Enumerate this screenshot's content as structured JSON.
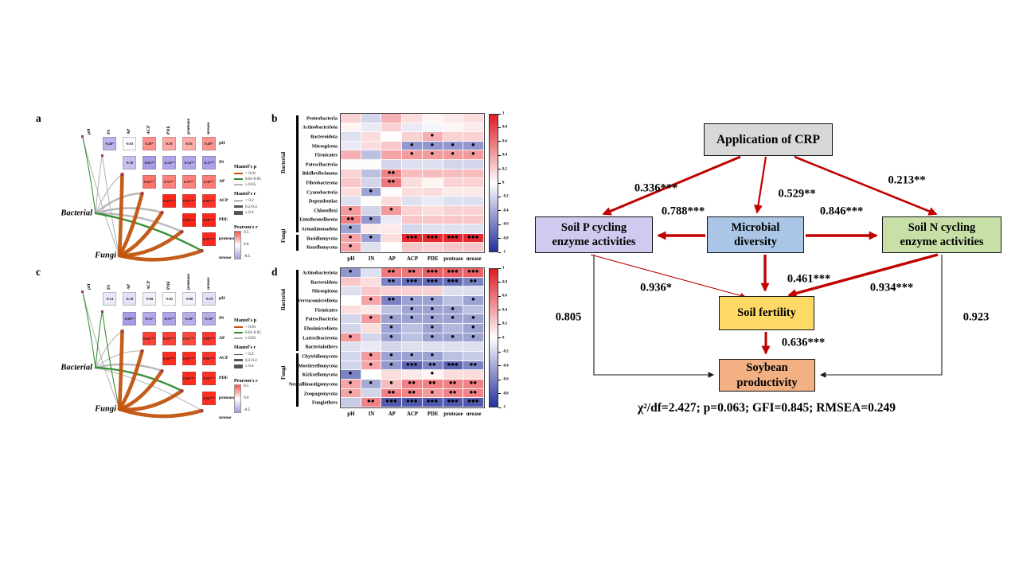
{
  "figure": {
    "background": "#ffffff",
    "accent_red": "#C00000"
  },
  "chart_data": [
    {
      "id": "a",
      "type": "heatmap",
      "subtype": "mantel-test-correlation",
      "panel_label": "a",
      "variables": [
        "pH",
        "IN",
        "AP",
        "ACP",
        "PDE",
        "protease",
        "urease"
      ],
      "nodes": [
        "Bacterial",
        "Fungi"
      ],
      "cells": [
        [
          "-0.46*",
          "-0.03",
          "0.49*",
          "0.39",
          "0.36",
          "0.48*"
        ],
        [
          "-0.38",
          "-0.61**",
          "-0.54**",
          "-0.54**",
          "-0.57**"
        ],
        [
          "0.62**",
          "0.55**",
          "0.55**",
          "0.58**"
        ],
        [
          "0.97***",
          "0.93***",
          "0.90***"
        ],
        [
          "0.98***",
          "0.96***"
        ],
        [
          "0.95***"
        ]
      ],
      "edges": [
        {
          "from": "Bacterial",
          "to": "pH",
          "p": "0.01-0.05",
          "r": "< 0.2"
        },
        {
          "from": "Bacterial",
          "to": "IN",
          "p": "≥ 0.05",
          "r": "< 0.2"
        },
        {
          "from": "Bacterial",
          "to": "AP",
          "p": "≥ 0.05",
          "r": "< 0.2"
        },
        {
          "from": "Bacterial",
          "to": "ACP",
          "p": "≥ 0.05",
          "r": "0.2-0.4"
        },
        {
          "from": "Bacterial",
          "to": "PDE",
          "p": "≥ 0.05",
          "r": "0.2-0.4"
        },
        {
          "from": "Bacterial",
          "to": "protease",
          "p": "≥ 0.05",
          "r": "0.2-0.4"
        },
        {
          "from": "Bacterial",
          "to": "urease",
          "p": "0.01-0.05",
          "r": "0.2-0.4"
        },
        {
          "from": "Fungi",
          "to": "pH",
          "p": "≥ 0.05",
          "r": "< 0.2"
        },
        {
          "from": "Fungi",
          "to": "IN",
          "p": "≥ 0.05",
          "r": "< 0.2"
        },
        {
          "from": "Fungi",
          "to": "AP",
          "p": "< 0.01",
          "r": "≥ 0.4"
        },
        {
          "from": "Fungi",
          "to": "ACP",
          "p": "< 0.01",
          "r": "≥ 0.4"
        },
        {
          "from": "Fungi",
          "to": "PDE",
          "p": "< 0.01",
          "r": "≥ 0.4"
        },
        {
          "from": "Fungi",
          "to": "protease",
          "p": "< 0.01",
          "r": "≥ 0.4"
        },
        {
          "from": "Fungi",
          "to": "urease",
          "p": "< 0.01",
          "r": "≥ 0.4"
        }
      ],
      "legend": {
        "mantel_p": {
          "title": "Mantel's p",
          "items": [
            {
              "label": "< 0.01",
              "color": "#C1530E"
            },
            {
              "label": "0.01-0.05",
              "color": "#2F8B2F"
            },
            {
              "label": "≥ 0.05",
              "color": "#B3B3B3"
            }
          ]
        },
        "mantel_r": {
          "title": "Mantel's r",
          "items": [
            {
              "label": "< 0.2",
              "width": 1
            },
            {
              "label": "0.2-0.4",
              "width": 2.5
            },
            {
              "label": "≥ 0.4",
              "width": 5
            }
          ]
        },
        "pearson": {
          "title": "Pearson's r",
          "ticks": [
            "0.5",
            "0.0",
            "-0.5"
          ]
        }
      }
    },
    {
      "id": "b",
      "type": "heatmap",
      "panel_label": "b",
      "columns": [
        "pH",
        "IN",
        "AP",
        "ACP",
        "PDE",
        "protease",
        "urease"
      ],
      "groups": [
        {
          "label": "Bacterial",
          "span": 13
        },
        {
          "label": "Fungi",
          "span": 2
        }
      ],
      "rows": [
        "Proteobacteria",
        "Actinobacteriota",
        "Bacteroidota",
        "Nitrospirota",
        "Firmicutes",
        "Patescibacteria",
        "Bdellovibrionota",
        "Fibrobacterota",
        "Cyanobacteria",
        "Dependentiae",
        "Chloroflexi",
        "Entotheonellaeota",
        "Armatimonadota",
        "Basidiomycota",
        "Rozellomycota"
      ],
      "values": [
        [
          0.2,
          -0.2,
          0.35,
          0.15,
          0.05,
          0.1,
          0.15
        ],
        [
          0.05,
          -0.1,
          0.2,
          -0.1,
          -0.05,
          0.05,
          0.1
        ],
        [
          -0.15,
          0.15,
          0.0,
          0.2,
          0.35,
          0.2,
          0.2
        ],
        [
          -0.1,
          0.15,
          0.25,
          -0.5,
          -0.5,
          -0.5,
          -0.5
        ],
        [
          0.35,
          -0.3,
          0.4,
          0.45,
          0.45,
          0.45,
          0.45
        ],
        [
          0.02,
          0.02,
          -0.2,
          -0.15,
          -0.15,
          -0.2,
          -0.2
        ],
        [
          0.2,
          -0.3,
          0.55,
          0.3,
          0.3,
          0.3,
          0.3
        ],
        [
          0.25,
          -0.2,
          0.6,
          0.15,
          0.05,
          0.2,
          0.2
        ],
        [
          0.15,
          -0.45,
          0.02,
          0.15,
          0.15,
          0.1,
          0.1
        ],
        [
          -0.15,
          0.02,
          0.15,
          -0.15,
          -0.1,
          -0.15,
          -0.15
        ],
        [
          0.45,
          -0.2,
          0.45,
          0.2,
          0.15,
          0.2,
          0.2
        ],
        [
          0.55,
          -0.5,
          -0.1,
          0.25,
          0.25,
          0.25,
          0.25
        ],
        [
          -0.45,
          0.1,
          0.1,
          -0.2,
          -0.15,
          -0.15,
          -0.15
        ],
        [
          0.4,
          -0.45,
          0.15,
          0.95,
          0.95,
          0.95,
          0.95
        ],
        [
          0.4,
          -0.15,
          0.0,
          0.25,
          0.2,
          0.25,
          0.25
        ]
      ],
      "sig": [
        [
          "",
          "",
          "",
          "",
          "",
          "",
          ""
        ],
        [
          "",
          "",
          "",
          "",
          "",
          "",
          ""
        ],
        [
          "",
          "",
          "",
          "",
          "*",
          "",
          ""
        ],
        [
          "",
          "",
          "",
          "*",
          "*",
          "*",
          "*"
        ],
        [
          "",
          "",
          "",
          "*",
          "*",
          "*",
          "*"
        ],
        [
          "",
          "",
          "",
          "",
          "",
          "",
          ""
        ],
        [
          "",
          "",
          "**",
          "",
          "",
          "",
          ""
        ],
        [
          "",
          "",
          "**",
          "",
          "",
          "",
          ""
        ],
        [
          "",
          "*",
          "",
          "",
          "",
          "",
          ""
        ],
        [
          "",
          "",
          "",
          "",
          "",
          "",
          ""
        ],
        [
          "*",
          "",
          "*",
          "",
          "",
          "",
          ""
        ],
        [
          "**",
          "*",
          "",
          "",
          "",
          "",
          ""
        ],
        [
          "*",
          "",
          "",
          "",
          "",
          "",
          ""
        ],
        [
          "*",
          "*",
          "",
          "***",
          "***",
          "***",
          "***"
        ],
        [
          "*",
          "",
          "",
          "",
          "",
          "",
          ""
        ]
      ],
      "colorbar_ticks": [
        "1",
        "0.8",
        "0.6",
        "0.4",
        "0.2",
        "0",
        "-0.2",
        "-0.4",
        "-0.6",
        "-0.8",
        "-1"
      ]
    },
    {
      "id": "c",
      "type": "heatmap",
      "subtype": "mantel-test-correlation",
      "panel_label": "c",
      "variables": [
        "pH",
        "IN",
        "AP",
        "ACP",
        "PDE",
        "protease",
        "urease"
      ],
      "nodes": [
        "Bacterial",
        "Fungi"
      ],
      "cells": [
        [
          "-0.14",
          "-0.18",
          "-0.09",
          "-0.02",
          "-0.08",
          "-0.19"
        ],
        [
          "-0.60**",
          "-0.51*",
          "-0.55**",
          "-0.49*",
          "-0.50*"
        ],
        [
          "0.84***",
          "0.85***",
          "0.81***",
          "0.89***"
        ],
        [
          "0.94***",
          "0.93***",
          "0.90***"
        ],
        [
          "0.94***",
          "0.92***"
        ],
        [
          "0.94***"
        ]
      ],
      "edges": [
        {
          "from": "Bacterial",
          "to": "pH",
          "p": "0.01-0.05",
          "r": "< 0.2"
        },
        {
          "from": "Bacterial",
          "to": "IN",
          "p": "0.01-0.05",
          "r": "< 0.2"
        },
        {
          "from": "Bacterial",
          "to": "AP",
          "p": "≥ 0.05",
          "r": "< 0.2"
        },
        {
          "from": "Bacterial",
          "to": "ACP",
          "p": "≥ 0.05",
          "r": "< 0.2"
        },
        {
          "from": "Bacterial",
          "to": "PDE",
          "p": "≥ 0.05",
          "r": "0.2-0.4"
        },
        {
          "from": "Bacterial",
          "to": "protease",
          "p": "0.01-0.05",
          "r": "0.2-0.4"
        },
        {
          "from": "Bacterial",
          "to": "urease",
          "p": "≥ 0.05",
          "r": "< 0.2"
        },
        {
          "from": "Fungi",
          "to": "pH",
          "p": "≥ 0.05",
          "r": "< 0.2"
        },
        {
          "from": "Fungi",
          "to": "IN",
          "p": "0.01-0.05",
          "r": "< 0.2"
        },
        {
          "from": "Fungi",
          "to": "AP",
          "p": "< 0.01",
          "r": "≥ 0.4"
        },
        {
          "from": "Fungi",
          "to": "ACP",
          "p": "< 0.01",
          "r": "≥ 0.4"
        },
        {
          "from": "Fungi",
          "to": "PDE",
          "p": "< 0.01",
          "r": "≥ 0.4"
        },
        {
          "from": "Fungi",
          "to": "protease",
          "p": "< 0.01",
          "r": "≥ 0.4"
        },
        {
          "from": "Fungi",
          "to": "urease",
          "p": "< 0.01",
          "r": "≥ 0.4"
        }
      ],
      "legend": {
        "mantel_p": {
          "title": "Mantel's p",
          "items": [
            {
              "label": "< 0.01",
              "color": "#C1530E"
            },
            {
              "label": "0.01-0.05",
              "color": "#2F8B2F"
            },
            {
              "label": "≥ 0.05",
              "color": "#B3B3B3"
            }
          ]
        },
        "mantel_r": {
          "title": "Mantel's r",
          "items": [
            {
              "label": "< 0.2",
              "width": 1
            },
            {
              "label": "0.2-0.4",
              "width": 2.5
            },
            {
              "label": "≥ 0.4",
              "width": 5
            }
          ]
        },
        "pearson": {
          "title": "Pearson's r",
          "ticks": [
            "0.5",
            "0.0",
            "-0.5"
          ]
        }
      }
    },
    {
      "id": "d",
      "type": "heatmap",
      "panel_label": "d",
      "columns": [
        "pH",
        "IN",
        "AP",
        "ACP",
        "PDE",
        "protease",
        "urease"
      ],
      "groups": [
        {
          "label": "Bacterial",
          "span": 9
        },
        {
          "label": "Fungi",
          "span": 6
        }
      ],
      "rows": [
        "Actinobacteriota",
        "Bacteroidota",
        "Nitrospirota",
        "Verrucomicrobiota",
        "Firmicutes",
        "Patescibacteria",
        "Elusimicrobiota",
        "Latescibacterota",
        "Bacterialothers",
        "Chytridiomycota",
        "Mortierellomycota",
        "Kickxellomycota",
        "Neocallimastigomycota",
        "Zoopagomycota",
        "Fungiothers"
      ],
      "values": [
        [
          -0.5,
          -0.15,
          0.6,
          0.6,
          0.7,
          0.7,
          0.7
        ],
        [
          0.25,
          0.15,
          -0.6,
          -0.7,
          -0.7,
          -0.7,
          -0.6
        ],
        [
          -0.15,
          0.25,
          0.2,
          0.2,
          0.2,
          -0.15,
          -0.15
        ],
        [
          0.0,
          0.4,
          -0.6,
          -0.45,
          -0.45,
          -0.3,
          -0.45
        ],
        [
          0.15,
          0.1,
          -0.3,
          -0.45,
          -0.45,
          -0.45,
          -0.3
        ],
        [
          -0.2,
          0.45,
          -0.45,
          -0.45,
          -0.45,
          -0.45,
          -0.45
        ],
        [
          -0.2,
          0.15,
          -0.45,
          -0.3,
          -0.45,
          -0.35,
          -0.45
        ],
        [
          0.45,
          -0.2,
          -0.45,
          -0.3,
          -0.45,
          -0.45,
          -0.45
        ],
        [
          -0.15,
          -0.1,
          -0.2,
          -0.15,
          -0.15,
          -0.15,
          -0.15
        ],
        [
          -0.2,
          0.45,
          -0.45,
          -0.45,
          -0.45,
          -0.3,
          -0.25
        ],
        [
          -0.2,
          0.4,
          -0.5,
          -0.75,
          -0.6,
          -0.75,
          -0.6
        ],
        [
          -0.6,
          0.0,
          0.15,
          0.1,
          0.05,
          0.15,
          0.15
        ],
        [
          0.4,
          -0.4,
          0.3,
          0.55,
          0.55,
          0.55,
          0.55
        ],
        [
          0.4,
          -0.2,
          0.55,
          0.55,
          0.45,
          0.55,
          0.55
        ],
        [
          -0.25,
          0.55,
          -0.8,
          -0.8,
          -0.8,
          -0.8,
          -0.8
        ]
      ],
      "sig": [
        [
          "*",
          "",
          "**",
          "**",
          "***",
          "***",
          "***"
        ],
        [
          "",
          "",
          "**",
          "***",
          "***",
          "***",
          "**"
        ],
        [
          "",
          "",
          "",
          "",
          "",
          "",
          ""
        ],
        [
          "",
          "*",
          "**",
          "*",
          "*",
          "",
          "*"
        ],
        [
          "",
          "",
          "",
          "*",
          "*",
          "*",
          ""
        ],
        [
          "",
          "*",
          "*",
          "*",
          "*",
          "*",
          "*"
        ],
        [
          "",
          "",
          "*",
          "",
          "*",
          "",
          "*"
        ],
        [
          "*",
          "",
          "*",
          "",
          "*",
          "*",
          "*"
        ],
        [
          "",
          "",
          "",
          "",
          "",
          "",
          ""
        ],
        [
          "",
          "*",
          "*",
          "*",
          "*",
          "",
          ""
        ],
        [
          "",
          "*",
          "*",
          "***",
          "**",
          "***",
          "**"
        ],
        [
          "*",
          "",
          "",
          "",
          "*",
          "",
          ""
        ],
        [
          "*",
          "*",
          "*",
          "**",
          "**",
          "**",
          "**"
        ],
        [
          "*",
          "",
          "**",
          "**",
          "*",
          "**",
          "**"
        ],
        [
          "",
          "**",
          "***",
          "***",
          "***",
          "***",
          "***"
        ]
      ],
      "colorbar_ticks": [
        "1",
        "0.8",
        "0.6",
        "0.4",
        "0.2",
        "0",
        "-0.2",
        "-0.4",
        "-0.6",
        "-0.8",
        "-1"
      ]
    },
    {
      "id": "sem",
      "type": "diagram",
      "subtype": "structural-equation-model",
      "arrow_color": "#C00000",
      "nodes": [
        {
          "id": "crp",
          "lines": [
            "Application of CRP"
          ],
          "fill": "#D8D8D8"
        },
        {
          "id": "p_enzymes",
          "lines": [
            "Soil P cycling",
            "enzyme activities"
          ],
          "fill": "#CFCBF0"
        },
        {
          "id": "microbial",
          "lines": [
            "Microbial",
            "diversity"
          ],
          "fill": "#ABC5E6"
        },
        {
          "id": "n_enzymes",
          "lines": [
            "Soil N cycling",
            "enzyme activities"
          ],
          "fill": "#C8E0A8"
        },
        {
          "id": "fertility",
          "lines": [
            "Soil fertility"
          ],
          "fill": "#FFD965"
        },
        {
          "id": "soybean",
          "lines": [
            "Soybean",
            "productivity"
          ],
          "fill": "#F2B083"
        }
      ],
      "paths": [
        {
          "from": "crp",
          "to": "p_enzymes",
          "label": "0.336***"
        },
        {
          "from": "crp",
          "to": "microbial",
          "label": "0.529**"
        },
        {
          "from": "crp",
          "to": "n_enzymes",
          "label": "0.213**"
        },
        {
          "from": "microbial",
          "to": "p_enzymes",
          "label": "0.788***"
        },
        {
          "from": "microbial",
          "to": "n_enzymes",
          "label": "0.846***"
        },
        {
          "from": "microbial",
          "to": "fertility",
          "label": "0.461***"
        },
        {
          "from": "p_enzymes",
          "to": "fertility",
          "label": "0.936*"
        },
        {
          "from": "n_enzymes",
          "to": "fertility",
          "label": "0.934***"
        },
        {
          "from": "fertility",
          "to": "soybean",
          "label": "0.636***"
        }
      ],
      "residual_paths": [
        {
          "from": "p_enzymes",
          "to": "soybean",
          "label": "0.805"
        },
        {
          "from": "n_enzymes",
          "to": "soybean",
          "label": "0.923"
        }
      ],
      "stats": "χ²/df=2.427; p=0.063; GFI=0.845; RMSEA=0.249"
    }
  ]
}
